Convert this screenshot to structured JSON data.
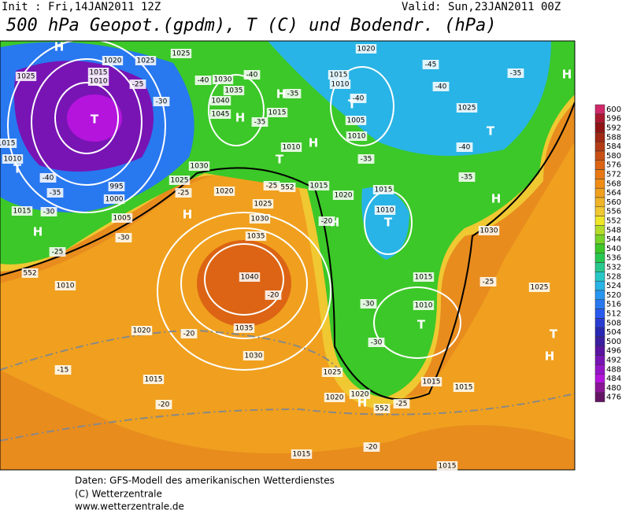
{
  "header": {
    "init": "Init : Fri,14JAN2011 12Z",
    "valid": "Valid: Sun,23JAN2011 00Z",
    "title": "500 hPa Geopot.(gpdm), T (C) und Bodendr. (hPa)"
  },
  "map": {
    "labels": [
      "H",
      "H",
      "H",
      "H",
      "H",
      "H",
      "H",
      "H",
      "H",
      "H",
      "H",
      "T",
      "T",
      "T",
      "T",
      "T",
      "T",
      "T",
      "T",
      "1020",
      "1025",
      "1025",
      "1025",
      "1015",
      "1010",
      "1030",
      "1035",
      "1040",
      "1045",
      "1015",
      "1005",
      "1010",
      "1015",
      "1010",
      "1020",
      "1010",
      "1025",
      "1030",
      "1025",
      "1020",
      "1015",
      "1020",
      "1015",
      "1010",
      "1030",
      "1025",
      "1030",
      "1035",
      "1040",
      "1015",
      "1010",
      "1025",
      "1005",
      "1000",
      "995",
      "1015",
      "1010",
      "1020",
      "1035",
      "1030",
      "1025",
      "1020",
      "1020",
      "1015",
      "1015",
      "1015",
      "1015",
      "1015",
      "1010",
      "1015",
      "-25",
      "-30",
      "-40",
      "-40",
      "-35",
      "-35",
      "-40",
      "-45",
      "-40",
      "-35",
      "-40",
      "-35",
      "-35",
      "-25",
      "-25",
      "-40",
      "-35",
      "-30",
      "-30",
      "-25",
      "-20",
      "-20",
      "-25",
      "-30",
      "-30",
      "-15",
      "-20",
      "-20",
      "-25",
      "-20",
      "552",
      "552",
      "552"
    ]
  },
  "colorbar": {
    "ticks": [
      600,
      596,
      592,
      588,
      584,
      580,
      576,
      572,
      568,
      564,
      560,
      556,
      552,
      548,
      544,
      540,
      536,
      532,
      528,
      524,
      520,
      516,
      512,
      508,
      504,
      500,
      496,
      492,
      488,
      484,
      480,
      476
    ],
    "colors": [
      "#d0286a",
      "#a8182e",
      "#901414",
      "#a02814",
      "#b43c14",
      "#c85014",
      "#dc6414",
      "#e87814",
      "#f08c14",
      "#f0a01e",
      "#f0b428",
      "#f0c832",
      "#f0e628",
      "#b4dc28",
      "#78d228",
      "#3cc828",
      "#28c850",
      "#28c88c",
      "#28c8c8",
      "#28b4e6",
      "#2896f0",
      "#2878f0",
      "#285af0",
      "#283cd2",
      "#2828b4",
      "#3c1ea0",
      "#5a14a0",
      "#7814b4",
      "#9614c8",
      "#b414dc",
      "#8c1496",
      "#641464"
    ]
  },
  "footer": {
    "lines": [
      "Daten: GFS-Modell des amerikanischen Wetterdienstes",
      "(C) Wetterzentrale",
      "www.wetterzentrale.de"
    ]
  }
}
